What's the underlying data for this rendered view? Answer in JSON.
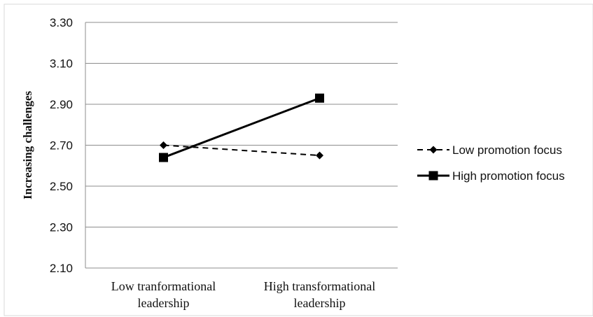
{
  "chart_data": {
    "type": "line",
    "title": "",
    "xlabel": "",
    "ylabel": "Increasing challenges",
    "ylim": [
      2.1,
      3.3
    ],
    "yticks": [
      "2.10",
      "2.30",
      "2.50",
      "2.70",
      "2.90",
      "3.10",
      "3.30"
    ],
    "categories": [
      [
        "Low tranformational",
        "leadership"
      ],
      [
        "High transformational",
        "leadership"
      ]
    ],
    "grid": true,
    "legend_position": "right",
    "series": [
      {
        "name": "Low promotion focus",
        "values": [
          2.7,
          2.65
        ],
        "line_style": "dashed",
        "marker": "diamond",
        "color": "#000000"
      },
      {
        "name": "High promotion focus",
        "values": [
          2.64,
          2.93
        ],
        "line_style": "solid",
        "marker": "square",
        "color": "#000000"
      }
    ]
  }
}
